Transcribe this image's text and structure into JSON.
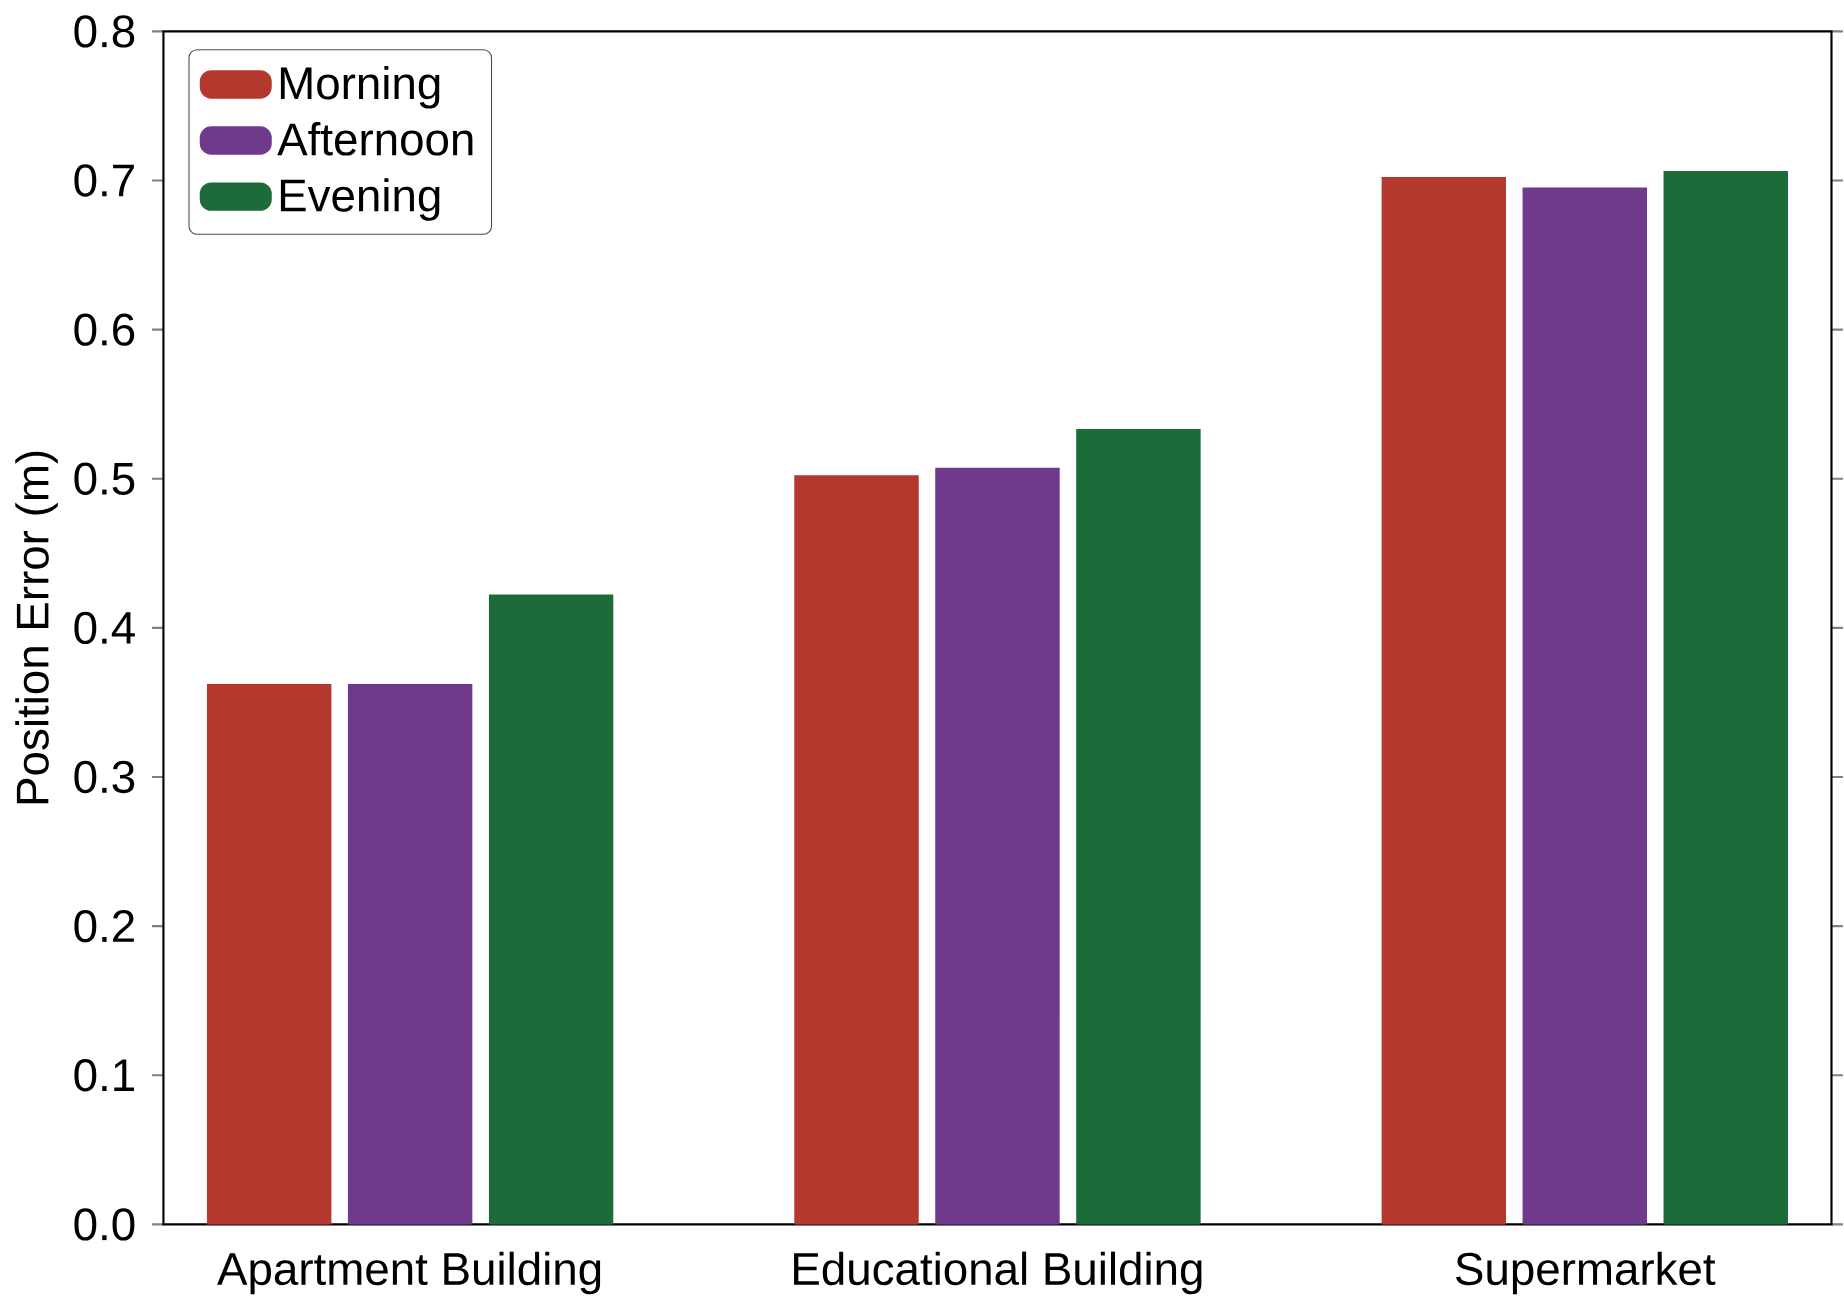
{
  "chart_data": {
    "type": "bar",
    "ylabel": "Position Error (m)",
    "categories": [
      "Apartment Building",
      "Educational Building",
      "Supermarket"
    ],
    "series": [
      {
        "name": "Morning",
        "color": "#b5382f",
        "values": [
          0.36,
          0.5,
          0.7
        ]
      },
      {
        "name": "Afternoon",
        "color": "#6f3a8c",
        "values": [
          0.36,
          0.505,
          0.693
        ]
      },
      {
        "name": "Evening",
        "color": "#1e6b3a",
        "values": [
          0.42,
          0.531,
          0.704
        ]
      }
    ],
    "ylim": [
      0,
      0.8
    ],
    "yticks": [
      {
        "value": 0,
        "label": "0.0"
      },
      {
        "value": 0.1,
        "label": "0.1"
      },
      {
        "value": 0.2,
        "label": "0.2"
      },
      {
        "value": 0.3,
        "label": "0.3"
      },
      {
        "value": 0.4,
        "label": "0.4"
      },
      {
        "value": 0.5,
        "label": "0.5"
      },
      {
        "value": 0.6,
        "label": "0.6"
      },
      {
        "value": 0.7,
        "label": "0.7"
      },
      {
        "value": 0.8,
        "label": "0.8"
      }
    ],
    "legend": "top left",
    "grid": false
  }
}
